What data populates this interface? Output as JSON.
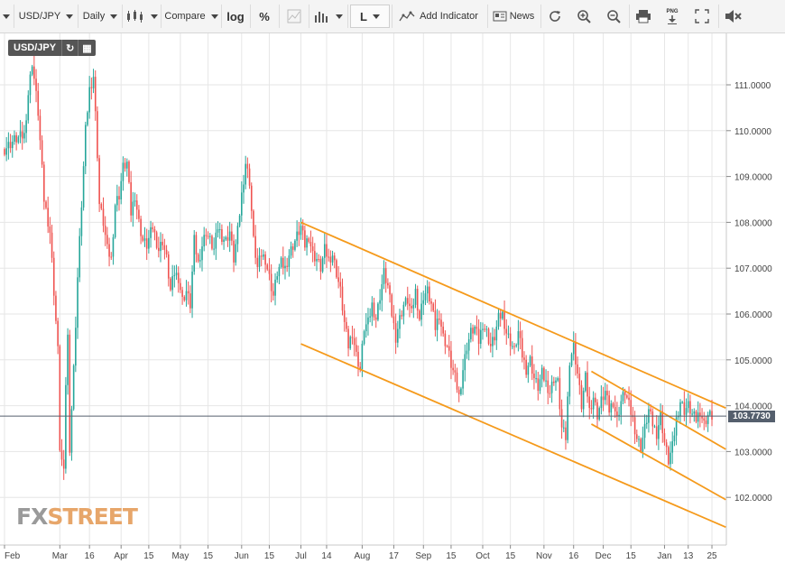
{
  "toolbar": {
    "symbol": "USD/JPY",
    "interval": "Daily",
    "compare": "Compare",
    "log": "log",
    "percent": "%",
    "crosshair_mode": "L",
    "add_indicator": "Add Indicator",
    "news": "News",
    "png": "PNG"
  },
  "symbol_box": {
    "label": "USD/JPY"
  },
  "logo": {
    "fx": "FX",
    "street": "STREET"
  },
  "colors": {
    "up": "#26a69a",
    "down": "#ef5350",
    "trendline": "#f59a1b",
    "last_price_line": "#555f6d",
    "axis_text": "#444444"
  },
  "chart_data": {
    "type": "candlestick",
    "symbol": "USD/JPY",
    "interval": "Daily",
    "last_price": 103.773,
    "last_price_label": "103.7730",
    "y_ticks": [
      102,
      103,
      104,
      105,
      106,
      107,
      108,
      109,
      110,
      111
    ],
    "y_tick_labels": [
      "102.0000",
      "103.0000",
      "104.0000",
      "105.0000",
      "106.0000",
      "107.0000",
      "108.0000",
      "109.0000",
      "110.0000",
      "111.0000"
    ],
    "x_ticks": [
      {
        "label": "Feb",
        "day": 0
      },
      {
        "label": "Mar",
        "day": 28
      },
      {
        "label": "16",
        "day": 43
      },
      {
        "label": "Apr",
        "day": 59
      },
      {
        "label": "15",
        "day": 73
      },
      {
        "label": "May",
        "day": 89
      },
      {
        "label": "15",
        "day": 103
      },
      {
        "label": "Jun",
        "day": 120
      },
      {
        "label": "15",
        "day": 134
      },
      {
        "label": "Jul",
        "day": 150
      },
      {
        "label": "14",
        "day": 163
      },
      {
        "label": "Aug",
        "day": 181
      },
      {
        "label": "17",
        "day": 197
      },
      {
        "label": "Sep",
        "day": 212
      },
      {
        "label": "15",
        "day": 226
      },
      {
        "label": "Oct",
        "day": 242
      },
      {
        "label": "15",
        "day": 256
      },
      {
        "label": "Nov",
        "day": 273
      },
      {
        "label": "16",
        "day": 288
      },
      {
        "label": "Dec",
        "day": 303
      },
      {
        "label": "15",
        "day": 317
      },
      {
        "label": "Jan",
        "day": 334
      },
      {
        "label": "13",
        "day": 346
      },
      {
        "label": "25",
        "day": 358
      }
    ],
    "trend_lines": [
      {
        "from": {
          "day": 150,
          "price": 108.0
        },
        "to": {
          "day": 365,
          "price": 103.95
        }
      },
      {
        "from": {
          "day": 150,
          "price": 105.35
        },
        "to": {
          "day": 365,
          "price": 101.35
        }
      },
      {
        "from": {
          "day": 297,
          "price": 104.75
        },
        "to": {
          "day": 365,
          "price": 103.05
        }
      },
      {
        "from": {
          "day": 297,
          "price": 103.6
        },
        "to": {
          "day": 365,
          "price": 101.95
        }
      }
    ],
    "closes": [
      [
        0,
        109.6
      ],
      [
        5,
        109.8
      ],
      [
        10,
        109.9
      ],
      [
        12,
        110.8
      ],
      [
        14,
        111.5
      ],
      [
        17,
        110.4
      ],
      [
        20,
        108.5
      ],
      [
        23,
        107.8
      ],
      [
        25,
        106.5
      ],
      [
        27,
        105.2
      ],
      [
        28,
        103.1
      ],
      [
        30,
        102.5
      ],
      [
        31,
        104.5
      ],
      [
        32,
        105.5
      ],
      [
        33,
        103.1
      ],
      [
        35,
        104.8
      ],
      [
        37,
        106.8
      ],
      [
        39,
        108.4
      ],
      [
        41,
        110.0
      ],
      [
        43,
        110.9
      ],
      [
        45,
        111.2
      ],
      [
        47,
        109.5
      ],
      [
        48,
        108.4
      ],
      [
        50,
        108.0
      ],
      [
        52,
        107.4
      ],
      [
        54,
        107.2
      ],
      [
        56,
        108.4
      ],
      [
        58,
        108.6
      ],
      [
        60,
        109.2
      ],
      [
        62,
        109.3
      ],
      [
        64,
        108.2
      ],
      [
        66,
        108.6
      ],
      [
        68,
        108.0
      ],
      [
        70,
        107.6
      ],
      [
        72,
        107.5
      ],
      [
        75,
        107.9
      ],
      [
        78,
        107.4
      ],
      [
        80,
        107.6
      ],
      [
        82,
        107.2
      ],
      [
        84,
        106.5
      ],
      [
        86,
        106.9
      ],
      [
        88,
        106.8
      ],
      [
        90,
        106.3
      ],
      [
        92,
        106.5
      ],
      [
        94,
        106.2
      ],
      [
        96,
        107.6
      ],
      [
        98,
        107.1
      ],
      [
        100,
        107.5
      ],
      [
        102,
        107.8
      ],
      [
        104,
        107.6
      ],
      [
        106,
        107.4
      ],
      [
        108,
        107.9
      ],
      [
        110,
        107.7
      ],
      [
        112,
        107.6
      ],
      [
        114,
        107.8
      ],
      [
        116,
        107.2
      ],
      [
        118,
        107.8
      ],
      [
        120,
        108.6
      ],
      [
        122,
        109.3
      ],
      [
        124,
        108.9
      ],
      [
        126,
        107.6
      ],
      [
        128,
        107.0
      ],
      [
        130,
        107.3
      ],
      [
        132,
        107.2
      ],
      [
        134,
        106.8
      ],
      [
        136,
        106.4
      ],
      [
        138,
        106.9
      ],
      [
        140,
        107.1
      ],
      [
        142,
        107.0
      ],
      [
        144,
        107.3
      ],
      [
        146,
        107.5
      ],
      [
        148,
        107.7
      ],
      [
        150,
        107.9
      ],
      [
        152,
        107.5
      ],
      [
        154,
        107.7
      ],
      [
        156,
        107.3
      ],
      [
        158,
        107.2
      ],
      [
        160,
        107.0
      ],
      [
        162,
        107.4
      ],
      [
        164,
        107.2
      ],
      [
        166,
        107.3
      ],
      [
        168,
        106.9
      ],
      [
        170,
        106.5
      ],
      [
        172,
        105.8
      ],
      [
        174,
        105.3
      ],
      [
        176,
        105.6
      ],
      [
        178,
        105.1
      ],
      [
        180,
        104.8
      ],
      [
        182,
        105.7
      ],
      [
        184,
        105.8
      ],
      [
        186,
        106.2
      ],
      [
        188,
        105.9
      ],
      [
        190,
        106.4
      ],
      [
        192,
        106.9
      ],
      [
        194,
        106.6
      ],
      [
        196,
        106.0
      ],
      [
        198,
        105.5
      ],
      [
        200,
        105.9
      ],
      [
        202,
        106.2
      ],
      [
        204,
        106.3
      ],
      [
        206,
        106.0
      ],
      [
        208,
        106.5
      ],
      [
        210,
        105.9
      ],
      [
        212,
        106.4
      ],
      [
        214,
        106.5
      ],
      [
        216,
        106.2
      ],
      [
        218,
        105.7
      ],
      [
        220,
        106.0
      ],
      [
        222,
        105.5
      ],
      [
        224,
        105.3
      ],
      [
        226,
        104.9
      ],
      [
        228,
        104.6
      ],
      [
        230,
        104.2
      ],
      [
        232,
        104.8
      ],
      [
        234,
        105.3
      ],
      [
        236,
        105.6
      ],
      [
        238,
        105.7
      ],
      [
        240,
        105.4
      ],
      [
        242,
        105.8
      ],
      [
        244,
        105.6
      ],
      [
        246,
        105.3
      ],
      [
        248,
        105.5
      ],
      [
        250,
        105.9
      ],
      [
        252,
        106.0
      ],
      [
        254,
        105.6
      ],
      [
        256,
        105.4
      ],
      [
        258,
        105.2
      ],
      [
        260,
        105.6
      ],
      [
        262,
        105.1
      ],
      [
        264,
        104.8
      ],
      [
        266,
        105.0
      ],
      [
        268,
        104.6
      ],
      [
        270,
        104.4
      ],
      [
        272,
        104.7
      ],
      [
        274,
        104.5
      ],
      [
        276,
        104.3
      ],
      [
        278,
        104.6
      ],
      [
        280,
        104.5
      ],
      [
        282,
        103.5
      ],
      [
        284,
        103.3
      ],
      [
        286,
        105.0
      ],
      [
        288,
        105.3
      ],
      [
        290,
        104.7
      ],
      [
        292,
        104.0
      ],
      [
        294,
        104.6
      ],
      [
        296,
        103.9
      ],
      [
        298,
        104.2
      ],
      [
        300,
        103.8
      ],
      [
        302,
        104.1
      ],
      [
        304,
        104.3
      ],
      [
        306,
        103.9
      ],
      [
        308,
        104.1
      ],
      [
        310,
        103.7
      ],
      [
        312,
        104.1
      ],
      [
        314,
        104.3
      ],
      [
        316,
        104.0
      ],
      [
        318,
        103.7
      ],
      [
        320,
        103.3
      ],
      [
        322,
        103.1
      ],
      [
        324,
        103.5
      ],
      [
        326,
        103.9
      ],
      [
        328,
        103.6
      ],
      [
        330,
        103.4
      ],
      [
        332,
        103.8
      ],
      [
        334,
        103.2
      ],
      [
        336,
        102.8
      ],
      [
        338,
        103.1
      ],
      [
        340,
        103.7
      ],
      [
        342,
        104.1
      ],
      [
        344,
        103.9
      ],
      [
        346,
        104.0
      ],
      [
        348,
        103.8
      ],
      [
        350,
        103.7
      ],
      [
        352,
        103.9
      ],
      [
        354,
        103.6
      ],
      [
        356,
        103.8
      ],
      [
        358,
        103.77
      ]
    ]
  }
}
